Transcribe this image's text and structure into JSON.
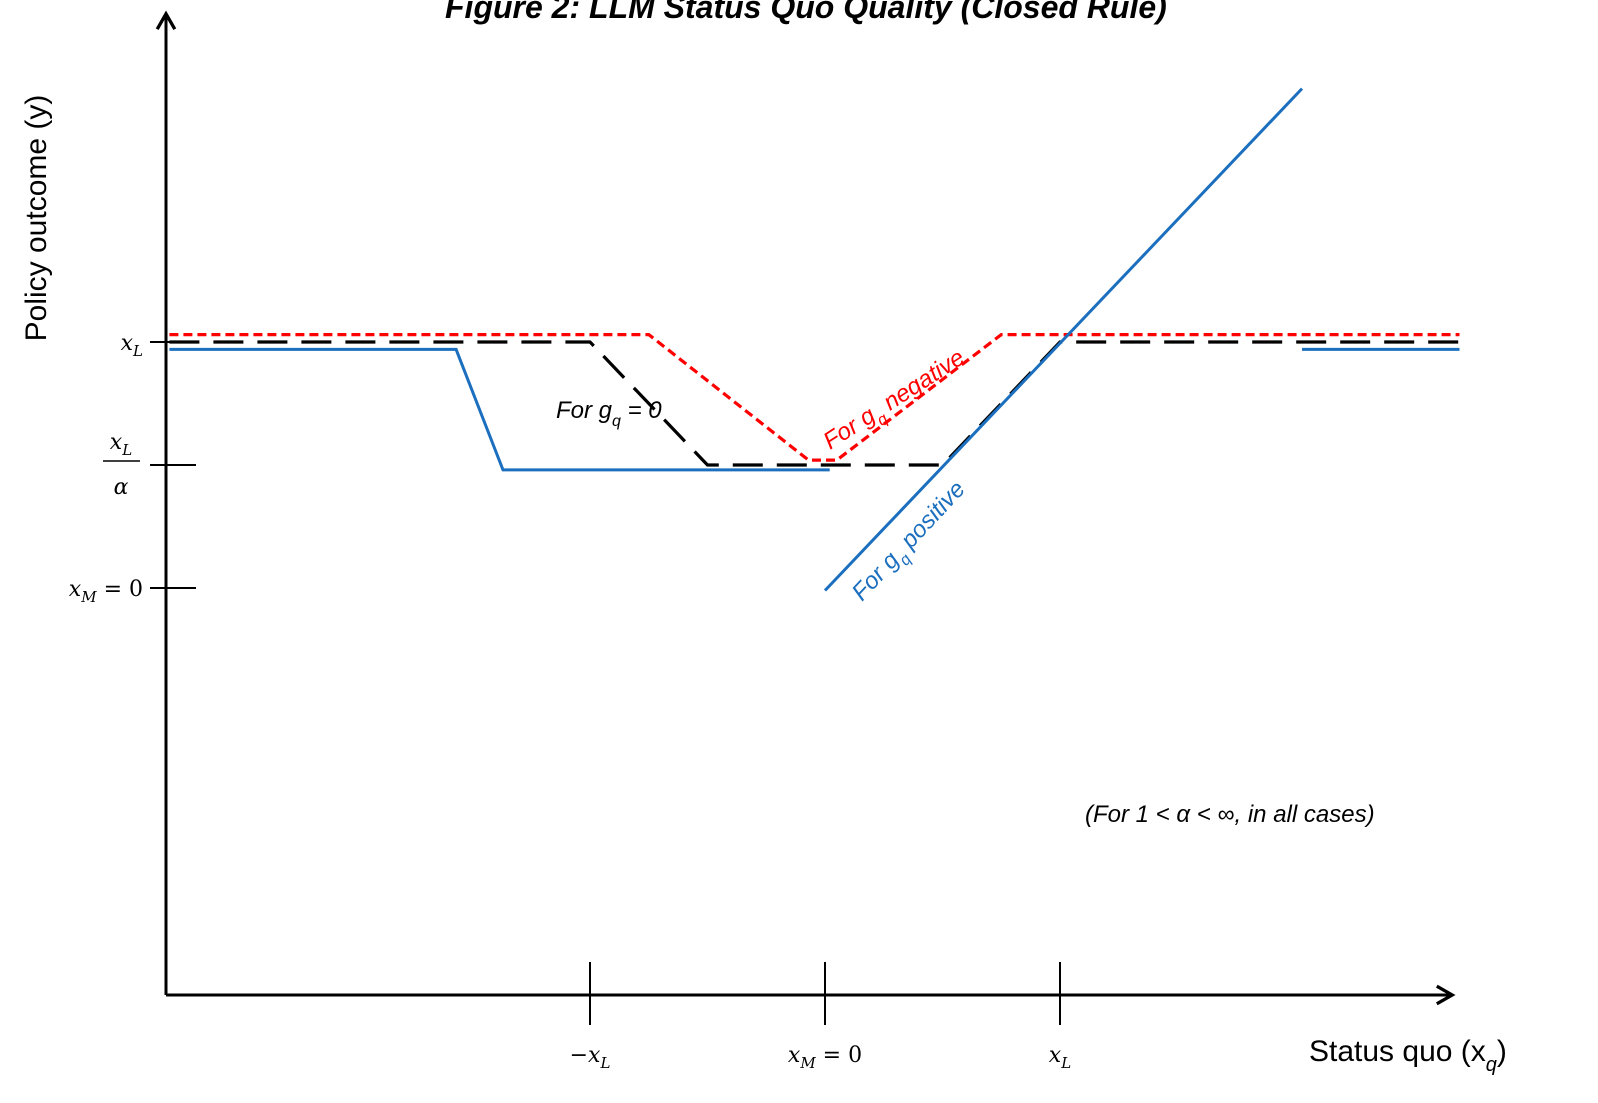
{
  "chart_data": {
    "type": "line",
    "title": "Figure 2: LLM Status Quo Quality (Closed Rule)",
    "xlabel": "Status quo (x",
    "xlabel_sub": "q",
    "xlabel_close": ")",
    "ylabel": "Policy outcome (y)",
    "note": "(For  1 < α < ∞, in all cases)",
    "x_ticks": [
      {
        "x": -1,
        "label": "−x",
        "sub": "L",
        "suffix": ""
      },
      {
        "x": 0,
        "label": "x",
        "sub": "M",
        "suffix": " = 0"
      },
      {
        "x": 1,
        "label": "x",
        "sub": "L",
        "suffix": ""
      }
    ],
    "y_ticks": [
      {
        "y": 1,
        "label": "x",
        "sub": "L",
        "kind": "plain"
      },
      {
        "y": 0.5,
        "label": "x",
        "sub": "L",
        "denominator": "α",
        "kind": "fraction"
      },
      {
        "y": 0,
        "label": "x",
        "sub": "M",
        "suffix": " = 0",
        "kind": "plain"
      }
    ],
    "xlim": [
      -2.8,
      2.7
    ],
    "ylim": [
      -1.7,
      2.05
    ],
    "series": [
      {
        "name": "For  g = 0",
        "name_prefix": "For  g",
        "name_sub": "q",
        "name_suffix": " = 0",
        "color": "#000000",
        "style": "long-dash",
        "segments": [
          [
            [
              -2.79,
              1.0
            ],
            [
              -1.0,
              1.0
            ],
            [
              -0.5,
              0.5
            ],
            [
              0.5,
              0.5
            ],
            [
              1.0,
              1.0
            ],
            [
              2.7,
              1.0
            ]
          ]
        ]
      },
      {
        "name": "For  g negative",
        "name_prefix": "For  g",
        "name_sub": "q",
        "name_suffix": " negative",
        "color": "#ff0000",
        "style": "short-dash",
        "segments": [
          [
            [
              -2.79,
              1.03
            ],
            [
              -0.75,
              1.03
            ],
            [
              -0.07,
              0.52
            ],
            [
              0.05,
              0.52
            ],
            [
              0.75,
              1.03
            ],
            [
              2.7,
              1.03
            ]
          ]
        ]
      },
      {
        "name": "For  g positive",
        "name_prefix": "For  g",
        "name_sub": "q",
        "name_suffix": " positive",
        "color": "#1b6fbe",
        "style": "solid",
        "segments": [
          [
            [
              -2.79,
              0.97
            ],
            [
              -1.57,
              0.97
            ],
            [
              -1.37,
              0.48
            ],
            [
              0.02,
              0.48
            ]
          ],
          [
            [
              0.0,
              -0.01
            ],
            [
              2.03,
              2.03
            ]
          ],
          [
            [
              2.03,
              0.97
            ],
            [
              2.7,
              0.97
            ]
          ]
        ]
      }
    ]
  },
  "colors": {
    "axis": "#000000",
    "black_dash": "#000000",
    "red_dash": "#ff0000",
    "blue": "#1b6fbe"
  }
}
